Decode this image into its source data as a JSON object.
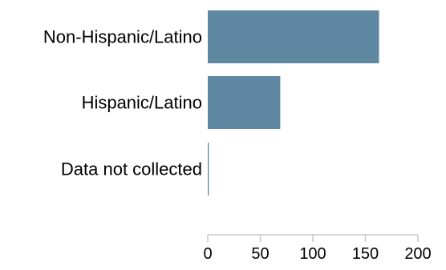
{
  "chart_data": {
    "type": "bar",
    "orientation": "horizontal",
    "categories": [
      "Non-Hispanic/Latino",
      "Hispanic/Latino",
      "Data not collected"
    ],
    "values": [
      163,
      69,
      1
    ],
    "xlim": [
      0,
      200
    ],
    "xticks": [
      "0",
      "50",
      "100",
      "150",
      "200"
    ],
    "title": "",
    "xlabel": "",
    "ylabel": "",
    "grid": false,
    "legend": "none",
    "bar_color": "#5f88a2",
    "axis_color": "#c8c8c8"
  }
}
